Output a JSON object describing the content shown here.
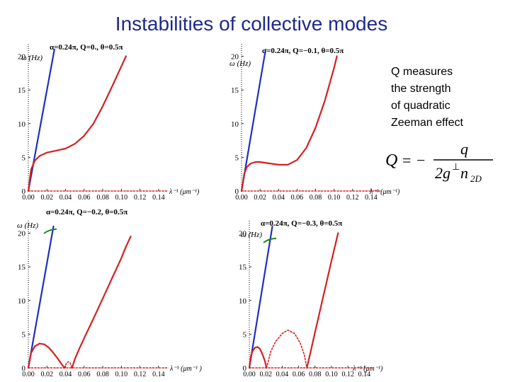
{
  "title": "Instabilities of collective modes",
  "note": {
    "lines": [
      "Q measures",
      "the strength",
      "of quadratic",
      "Zeeman effect"
    ]
  },
  "formula": {
    "lhs": "Q",
    "eq": "=",
    "minus": "−",
    "numerator": "q",
    "denominator_main": "2g",
    "denominator_sup": "⊥",
    "denominator_n": "n",
    "denominator_sub": "2D"
  },
  "colors": {
    "title": "#1f2a8a",
    "blue_branch": "#1f2fbf",
    "red_branch": "#d42020",
    "green_mark": "#1a8a1a",
    "axis": "#000000"
  },
  "chart_data": [
    {
      "type": "line",
      "title": "α=0.24π, Q=0., θ=0.5π",
      "ylabel": "ω (Hz)",
      "xlabel": "λ⁻¹ (μm⁻¹)",
      "xlim": [
        0,
        0.15
      ],
      "ylim": [
        0,
        21
      ],
      "xticks": [
        "0.00",
        "0.02",
        "0.04",
        "0.06",
        "0.08",
        "0.10",
        "0.12",
        "0.14"
      ],
      "yticks": [
        "0",
        "5",
        "10",
        "15",
        "20"
      ],
      "series": [
        {
          "color": "blue",
          "style": "solid",
          "x": [
            0,
            0.028
          ],
          "y": [
            0,
            21
          ]
        },
        {
          "color": "red",
          "style": "solid",
          "x": [
            0,
            0.003,
            0.007,
            0.012,
            0.02,
            0.03,
            0.04,
            0.05,
            0.06,
            0.07,
            0.08,
            0.09,
            0.1,
            0.105
          ],
          "y": [
            0,
            3.2,
            4.5,
            5.2,
            5.7,
            6.0,
            6.3,
            7.0,
            8.2,
            10.0,
            12.6,
            15.5,
            18.5,
            20.0
          ]
        },
        {
          "color": "red",
          "style": "dotted",
          "x": [
            0,
            0.15
          ],
          "y": [
            0,
            0
          ]
        }
      ]
    },
    {
      "type": "line",
      "title": "α=0.24π, Q=−0.1, θ=0.5π",
      "ylabel": "ω (Hz)",
      "xlabel": "λ⁻¹ (μm⁻¹)",
      "xlim": [
        0,
        0.15
      ],
      "ylim": [
        0,
        21
      ],
      "xticks": [
        "0.00",
        "0.02",
        "0.04",
        "0.06",
        "0.08",
        "0.10",
        "0.12",
        "0.14"
      ],
      "yticks": [
        "0",
        "5",
        "10",
        "15",
        "20"
      ],
      "series": [
        {
          "color": "blue",
          "style": "solid",
          "x": [
            0,
            0.026
          ],
          "y": [
            0,
            21
          ]
        },
        {
          "color": "red",
          "style": "solid",
          "x": [
            0,
            0.003,
            0.006,
            0.01,
            0.015,
            0.02,
            0.03,
            0.04,
            0.05,
            0.06,
            0.07,
            0.08,
            0.09,
            0.1,
            0.103
          ],
          "y": [
            0,
            2.6,
            3.6,
            4.1,
            4.3,
            4.3,
            4.1,
            3.9,
            3.9,
            4.6,
            6.4,
            9.4,
            13.4,
            18.3,
            20.0
          ]
        },
        {
          "color": "red",
          "style": "dotted",
          "x": [
            0,
            0.15
          ],
          "y": [
            0,
            0
          ]
        }
      ]
    },
    {
      "type": "line",
      "title": "α=0.24π, Q=−0.2, θ=0.5π",
      "ylabel": "ω (Hz)",
      "xlabel": "λ⁻¹ (μm⁻¹ )",
      "xlim": [
        0,
        0.15
      ],
      "ylim": [
        0,
        21
      ],
      "xticks": [
        "0.00",
        "0.02",
        "0.04",
        "0.06",
        "0.08",
        "0.10",
        "0.12",
        "0.14"
      ],
      "yticks": [
        "0",
        "5",
        "10",
        "15",
        "20"
      ],
      "series": [
        {
          "color": "blue",
          "style": "solid",
          "x": [
            0,
            0.027
          ],
          "y": [
            0,
            21
          ]
        },
        {
          "color": "red",
          "style": "solid",
          "x": [
            0,
            0.003,
            0.007,
            0.012,
            0.017,
            0.022,
            0.027,
            0.032,
            0.036,
            0.039
          ],
          "y": [
            0,
            2.2,
            3.2,
            3.6,
            3.5,
            3.0,
            2.2,
            1.3,
            0.5,
            0
          ]
        },
        {
          "color": "red",
          "style": "solid",
          "x": [
            0.047,
            0.05,
            0.055,
            0.06,
            0.07,
            0.08,
            0.09,
            0.1,
            0.105,
            0.11
          ],
          "y": [
            0,
            1.3,
            2.9,
            4.4,
            7.3,
            10.3,
            13.3,
            16.3,
            18.0,
            19.5
          ]
        },
        {
          "color": "red",
          "style": "dotted",
          "x": [
            0.039,
            0.041,
            0.043,
            0.045,
            0.047
          ],
          "y": [
            0,
            0.7,
            0.9,
            0.7,
            0
          ]
        },
        {
          "color": "red",
          "style": "dotted",
          "x": [
            0,
            0.15
          ],
          "y": [
            0,
            0
          ]
        }
      ]
    },
    {
      "type": "line",
      "title": "α=0.24π, Q=−0.3, θ=0.5π",
      "ylabel": "ω (Hz)",
      "xlabel": "λ⁻¹ (μm⁻¹)",
      "xlim": [
        0,
        0.15
      ],
      "ylim": [
        0,
        21
      ],
      "xticks": [
        "0.00",
        "0.02",
        "0.04",
        "0.06",
        "0.08",
        "0.10",
        "0.12",
        "0.14"
      ],
      "yticks": [
        "0",
        "5",
        "10",
        "15",
        "20"
      ],
      "series": [
        {
          "color": "blue",
          "style": "solid",
          "x": [
            0,
            0.028
          ],
          "y": [
            0,
            21
          ]
        },
        {
          "color": "red",
          "style": "solid",
          "x": [
            0,
            0.002,
            0.004,
            0.007,
            0.01,
            0.013,
            0.016,
            0.019,
            0.021
          ],
          "y": [
            0,
            1.8,
            2.5,
            3.0,
            3.1,
            2.8,
            2.0,
            1.0,
            0
          ]
        },
        {
          "color": "red",
          "style": "dotted",
          "x": [
            0.021,
            0.026,
            0.032,
            0.04,
            0.047,
            0.055,
            0.062,
            0.067,
            0.07
          ],
          "y": [
            0,
            2.4,
            3.9,
            5.1,
            5.6,
            5.1,
            3.7,
            1.9,
            0
          ]
        },
        {
          "color": "red",
          "style": "solid",
          "x": [
            0.07,
            0.075,
            0.08,
            0.09,
            0.1,
            0.108
          ],
          "y": [
            0,
            2.6,
            5.3,
            10.6,
            15.9,
            20.0
          ]
        },
        {
          "color": "red",
          "style": "dotted",
          "x": [
            0,
            0.15
          ],
          "y": [
            0,
            0
          ]
        }
      ]
    }
  ]
}
